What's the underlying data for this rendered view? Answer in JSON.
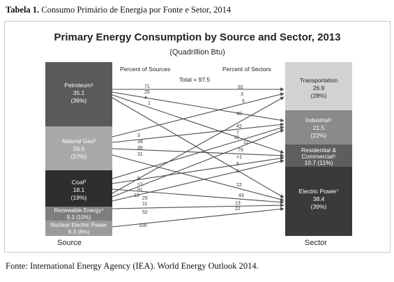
{
  "caption": {
    "label": "Tabela 1.",
    "text": "Consumo Primário de Energia por Fonte e Setor, 2014"
  },
  "source_note": "Fonte: International Energy Agency (IEA). World Energy Outlook 2014.",
  "diagram": {
    "title": "Primary Energy Consumption by Source and Sector, 2013",
    "subtitle": "(Quadrillion Btu)",
    "total_label": "Total = 97.5",
    "left_column_header": "Percent of Sources",
    "right_column_header": "Percent of Sectors",
    "left_axis_label": "Source",
    "right_axis_label": "Sector",
    "colors": {
      "source_petroleum": "#5a5a5a",
      "source_natural_gas": "#a9a9a9",
      "source_coal": "#2e2e2e",
      "source_renewable": "#7e7e7e",
      "source_nuclear": "#9b9b9b",
      "sector_transportation": "#d2d2d2",
      "sector_industrial": "#8a8a8a",
      "sector_residential": "#5e5e5e",
      "sector_electric": "#3a3a3a"
    },
    "sources": [
      {
        "id": "petroleum",
        "name": "Petroleum¹",
        "value": "35.1",
        "pct": "(36%)"
      },
      {
        "id": "natural_gas",
        "name": "Natural Gas²",
        "value": "26.6",
        "pct": "(27%)"
      },
      {
        "id": "coal",
        "name": "Coal³",
        "value": "18.1",
        "pct": "(19%)"
      },
      {
        "id": "renewable",
        "name": "Renewable Energy⁴",
        "value": "9.3 (10%)",
        "pct": ""
      },
      {
        "id": "nuclear",
        "name": "Nuclear Electric Power",
        "value": "8.3 (8%)",
        "pct": ""
      }
    ],
    "sectors": [
      {
        "id": "transportation",
        "name": "Transportation",
        "value": "26.9",
        "pct": "(28%)"
      },
      {
        "id": "industrial",
        "name": "Industrial⁵",
        "value": "21.5",
        "pct": "(22%)"
      },
      {
        "id": "residential",
        "name": "Residential &",
        "name2": "Commercial⁶",
        "value": "10.7 (11%)",
        "pct": ""
      },
      {
        "id": "electric",
        "name": "Electric Power⁷",
        "value": "38.4",
        "pct": "(39%)"
      }
    ],
    "left_labels": [
      "71",
      "25",
      "4",
      "1",
      "3",
      "34",
      "35",
      "31",
      "9",
      "<1",
      "91",
      "13",
      "25",
      "11",
      "52",
      "100"
    ],
    "right_labels": [
      "92",
      "3",
      "5",
      "40",
      "42",
      "7",
      "10",
      "12",
      "79",
      "<1",
      "5",
      "1",
      "22",
      "43",
      "13",
      "22"
    ]
  }
}
